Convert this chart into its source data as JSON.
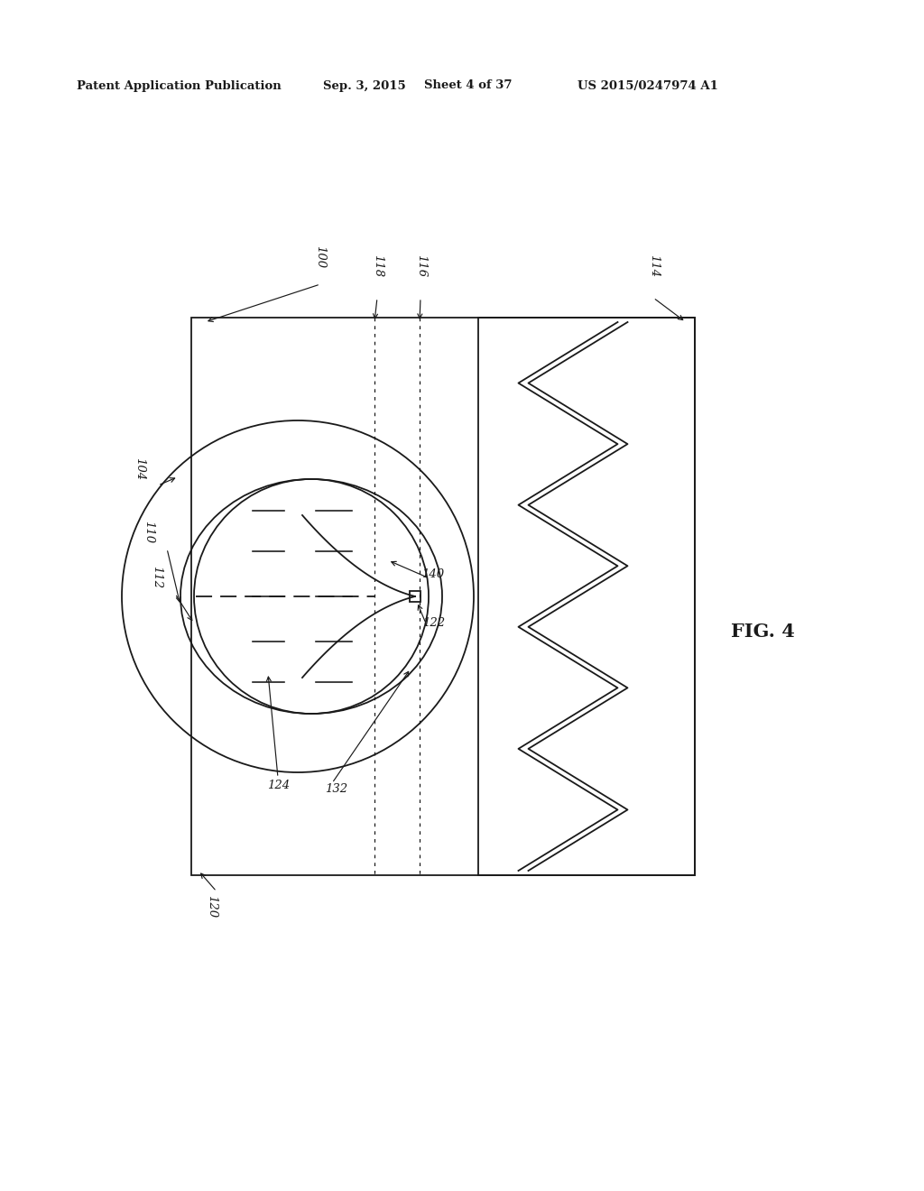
{
  "header_left": "Patent Application Publication",
  "header_mid": "Sep. 3, 2015   Sheet 4 of 37",
  "header_right": "US 2015/0247974 A1",
  "fig_label": "FIG. 4",
  "background_color": "#ffffff",
  "line_color": "#1a1a1a"
}
